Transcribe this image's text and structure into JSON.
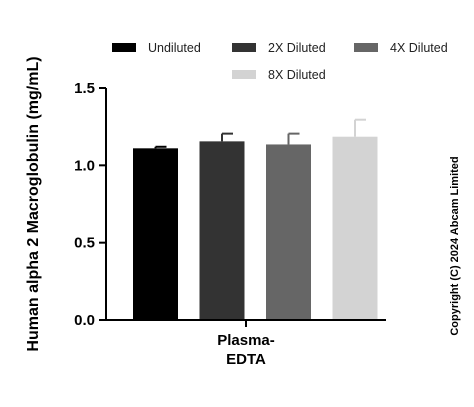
{
  "chart_data": {
    "type": "bar",
    "categories": [
      "Plasma-EDTA"
    ],
    "category_label_lines": [
      "Plasma-",
      "EDTA"
    ],
    "ylabel": "Human alpha 2 Macroglobulin (mg/mL)",
    "ylim": [
      0,
      1.5
    ],
    "yticks": [
      "0.0",
      "0.5",
      "1.0",
      "1.5"
    ],
    "ytick_values": [
      0,
      0.5,
      1.0,
      1.5
    ],
    "grid": false,
    "legend_position": "top",
    "series": [
      {
        "name": "Undiluted",
        "values": [
          1.11
        ],
        "error": [
          0.01
        ],
        "color": "#000000"
      },
      {
        "name": "2X Diluted",
        "values": [
          1.155
        ],
        "error": [
          0.05
        ],
        "color": "#333333"
      },
      {
        "name": "4X Diluted",
        "values": [
          1.135
        ],
        "error": [
          0.07
        ],
        "color": "#666666"
      },
      {
        "name": "8X Diluted",
        "values": [
          1.185
        ],
        "error": [
          0.11
        ],
        "color": "#d3d3d3"
      }
    ]
  },
  "copyright": "Copyright (C) 2024 Abcam Limited"
}
